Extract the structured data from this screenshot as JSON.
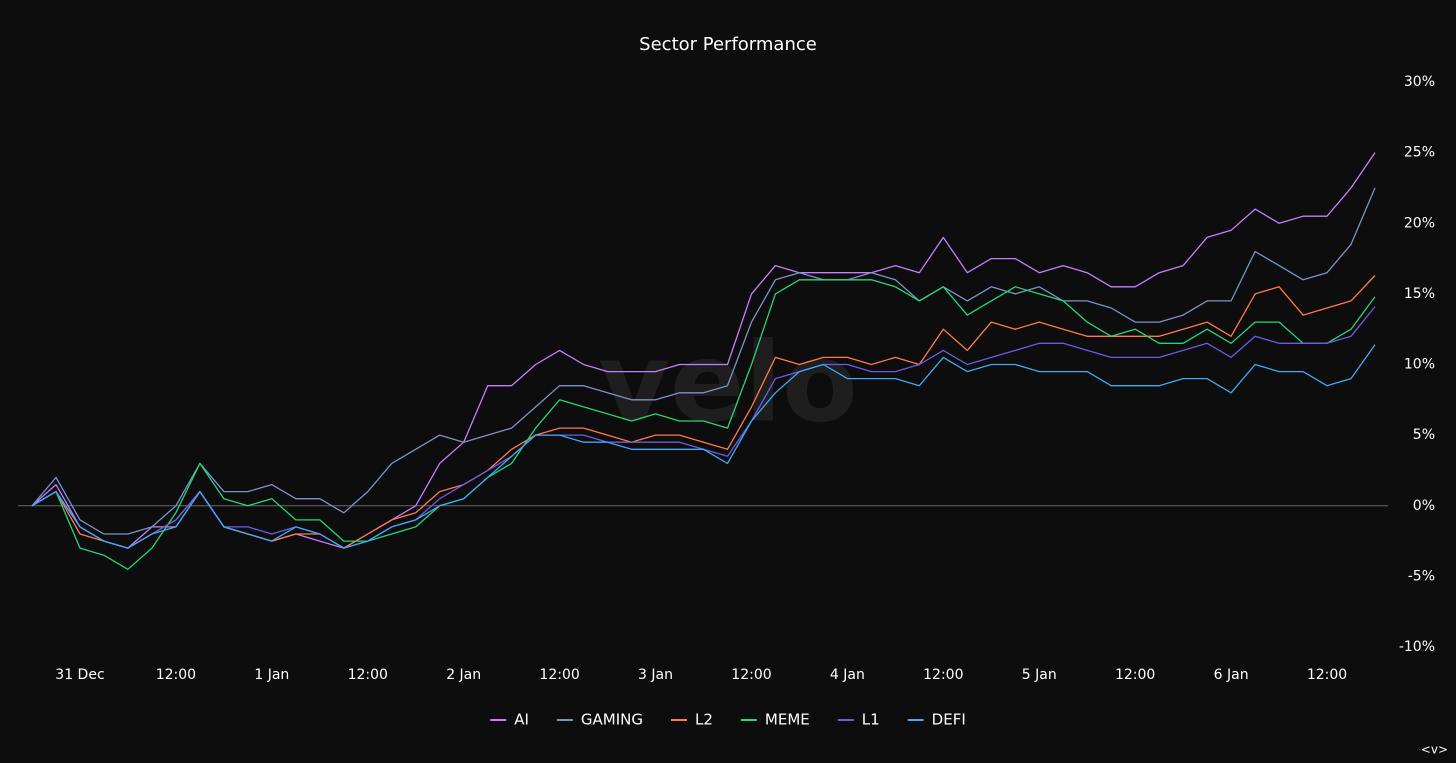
{
  "chart_data": {
    "type": "line",
    "title": "Sector Performance",
    "watermark": "velo",
    "corner_mark": "<v>",
    "categories": [
      null,
      null,
      "31 Dec",
      null,
      null,
      null,
      "12:00",
      null,
      null,
      null,
      "1 Jan",
      null,
      null,
      null,
      "12:00",
      null,
      null,
      null,
      "2 Jan",
      null,
      null,
      null,
      "12:00",
      null,
      null,
      null,
      "3 Jan",
      null,
      null,
      null,
      "12:00",
      null,
      null,
      null,
      "4 Jan",
      null,
      null,
      null,
      "12:00",
      null,
      null,
      null,
      "5 Jan",
      null,
      null,
      null,
      "12:00",
      null,
      null,
      null,
      "6 Jan",
      null,
      null,
      null,
      "12:00",
      null,
      null
    ],
    "ylim": [
      -10,
      30
    ],
    "yticks": [
      {
        "value": -10,
        "label": "-10%"
      },
      {
        "value": -5,
        "label": "-5%"
      },
      {
        "value": 0,
        "label": "0%"
      },
      {
        "value": 5,
        "label": "5%"
      },
      {
        "value": 10,
        "label": "10%"
      },
      {
        "value": 15,
        "label": "15%"
      },
      {
        "value": 20,
        "label": "20%"
      },
      {
        "value": 25,
        "label": "25%"
      },
      {
        "value": 30,
        "label": "30%"
      }
    ],
    "zero_line": true,
    "legend": "bottom",
    "series": [
      {
        "name": "AI",
        "color": "#c77dff",
        "values": [
          0,
          1.5,
          -1.5,
          -2.5,
          -3,
          -1.5,
          -1.5,
          1,
          -1.5,
          -2,
          -2.5,
          -2,
          -2.5,
          -3,
          -2,
          -1,
          0,
          3,
          4.5,
          8.5,
          8.5,
          10,
          11,
          10,
          9.5,
          9.5,
          9.5,
          10,
          10,
          10,
          15,
          17,
          16.5,
          16.5,
          16.5,
          16.5,
          17,
          16.5,
          19,
          16.5,
          17.5,
          17.5,
          16.5,
          17,
          16.5,
          15.5,
          15.5,
          16.5,
          17,
          19,
          19.5,
          21,
          20,
          20.5,
          20.5,
          22.5,
          25
        ]
      },
      {
        "name": "GAMING",
        "color": "#7b93c9",
        "values": [
          0,
          2,
          -1,
          -2,
          -2,
          -1.5,
          0,
          3,
          1,
          1,
          1.5,
          0.5,
          0.5,
          -0.5,
          1,
          3,
          4,
          5,
          4.5,
          5,
          5.5,
          7,
          8.5,
          8.5,
          8,
          7.5,
          7.5,
          8,
          8,
          8.5,
          13,
          16,
          16.5,
          16,
          16,
          16.5,
          16,
          14.5,
          15.5,
          14.5,
          15.5,
          15,
          15.5,
          14.5,
          14.5,
          14,
          13,
          13,
          13.5,
          14.5,
          14.5,
          18,
          17,
          16,
          16.5,
          18.5,
          22.5
        ]
      },
      {
        "name": "L2",
        "color": "#ff7b45",
        "values": [
          0,
          1,
          -2,
          -2.5,
          -3,
          -2,
          -1,
          1,
          -1.5,
          -2,
          -2.5,
          -2,
          -2,
          -3,
          -2,
          -1,
          -0.5,
          1,
          1.5,
          2.5,
          4,
          5,
          5.5,
          5.5,
          5,
          4.5,
          5,
          5,
          4.5,
          4,
          7,
          10.5,
          10,
          10.5,
          10.5,
          10,
          10.5,
          10,
          12.5,
          11,
          13,
          12.5,
          13,
          12.5,
          12,
          12,
          12,
          12,
          12.5,
          13,
          12,
          15,
          15.5,
          13.5,
          14,
          14.5,
          16.3
        ]
      },
      {
        "name": "MEME",
        "color": "#22d67a",
        "values": [
          0,
          1,
          -3,
          -3.5,
          -4.5,
          -3,
          -0.5,
          3,
          0.5,
          0,
          0.5,
          -1,
          -1,
          -2.5,
          -2.5,
          -2,
          -1.5,
          0,
          0.5,
          2,
          3,
          5.5,
          7.5,
          7,
          6.5,
          6,
          6.5,
          6,
          6,
          5.5,
          10,
          15,
          16,
          16,
          16,
          16,
          15.5,
          14.5,
          15.5,
          13.5,
          14.5,
          15.5,
          15,
          14.5,
          13,
          12,
          12.5,
          11.5,
          11.5,
          12.5,
          11.5,
          13,
          13,
          11.5,
          11.5,
          12.5,
          14.8
        ]
      },
      {
        "name": "L1",
        "color": "#6b5ce0",
        "values": [
          0,
          1,
          -1.5,
          -2.5,
          -3,
          -2,
          -1,
          1,
          -1.5,
          -1.5,
          -2,
          -1.5,
          -2,
          -3,
          -2.5,
          -1.5,
          -1,
          0.5,
          1.5,
          2.5,
          3.5,
          5,
          5,
          5,
          4.5,
          4.5,
          4.5,
          4.5,
          4,
          3.5,
          6,
          9,
          9.5,
          10,
          10,
          9.5,
          9.5,
          10,
          11,
          10,
          10.5,
          11,
          11.5,
          11.5,
          11,
          10.5,
          10.5,
          10.5,
          11,
          11.5,
          10.5,
          12,
          11.5,
          11.5,
          11.5,
          12,
          14.1
        ]
      },
      {
        "name": "DEFI",
        "color": "#3fa9f5",
        "values": [
          0,
          1,
          -1.5,
          -2.5,
          -3,
          -2,
          -1.5,
          1,
          -1.5,
          -2,
          -2.5,
          -1.5,
          -2,
          -3,
          -2.5,
          -1.5,
          -1,
          0,
          0.5,
          2,
          3.5,
          5,
          5,
          4.5,
          4.5,
          4,
          4,
          4,
          4,
          3,
          6,
          8,
          9.5,
          10,
          9,
          9,
          9,
          8.5,
          10.5,
          9.5,
          10,
          10,
          9.5,
          9.5,
          9.5,
          8.5,
          8.5,
          8.5,
          9,
          9,
          8,
          10,
          9.5,
          9.5,
          8.5,
          9,
          11.4
        ]
      }
    ]
  }
}
